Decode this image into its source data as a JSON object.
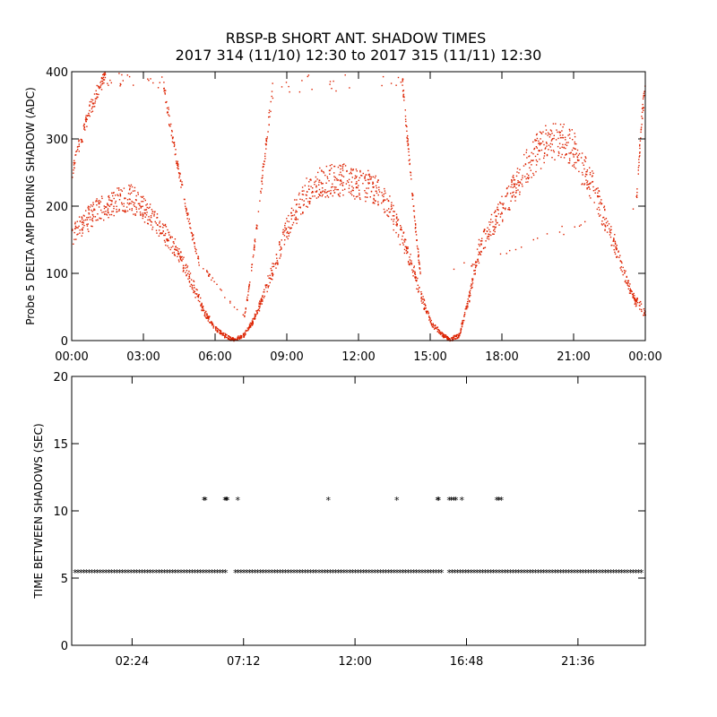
{
  "title": {
    "line1": "RBSP-B SHORT ANT. SHADOW TIMES",
    "line2": "2017 314 (11/10) 12:30 to 2017 315 (11/11) 12:30"
  },
  "chart_data": [
    {
      "type": "scatter",
      "ylabel": "Probe 5 DELTA AMP DURING SHADOW (ADC)",
      "xlabel": "",
      "x_unit": "hours",
      "xlim": [
        0,
        24
      ],
      "ylim": [
        0,
        400
      ],
      "x_ticks": [
        0,
        3,
        6,
        9,
        12,
        15,
        18,
        21,
        24
      ],
      "x_tick_labels": [
        "00:00",
        "03:00",
        "06:00",
        "09:00",
        "12:00",
        "15:00",
        "18:00",
        "21:00",
        "00:00"
      ],
      "y_ticks": [
        0,
        100,
        200,
        300,
        400
      ],
      "y_tick_labels": [
        "0",
        "100",
        "200",
        "300",
        "400"
      ],
      "color": "#dd2200",
      "series": [
        {
          "label_key": "main_band",
          "x": [
            0,
            0.5,
            1,
            1.5,
            2,
            2.5,
            3,
            3.5,
            4,
            4.5,
            5,
            5.5,
            6,
            6.5,
            6.8,
            7.2,
            7.6,
            8,
            8.5,
            9,
            9.5,
            10,
            10.5,
            11,
            11.5,
            12,
            12.5,
            13,
            13.5,
            14,
            14.5,
            15,
            15.5,
            15.8,
            16.2,
            16.6,
            17,
            17.5,
            18,
            18.5,
            19,
            19.5,
            20,
            20.5,
            21,
            21.5,
            22,
            22.5,
            23,
            23.5,
            24
          ],
          "y": [
            175,
            195,
            210,
            222,
            232,
            230,
            215,
            195,
            170,
            140,
            95,
            50,
            20,
            6,
            2,
            10,
            35,
            75,
            130,
            185,
            225,
            250,
            262,
            265,
            262,
            258,
            252,
            235,
            200,
            150,
            85,
            30,
            10,
            2,
            10,
            70,
            150,
            185,
            215,
            250,
            285,
            310,
            325,
            330,
            310,
            275,
            230,
            180,
            120,
            70,
            45
          ]
        },
        {
          "label_key": "outer_arcs",
          "x": [
            0,
            0.3,
            0.6,
            0.9,
            1.2,
            1.4,
            3.8,
            4.1,
            4.4,
            4.7,
            5,
            5.3,
            7.2,
            7.5,
            7.8,
            8.1,
            8.4,
            13.8,
            14,
            14.2,
            14.4,
            14.6,
            23.6,
            23.8,
            24
          ],
          "y": [
            260,
            300,
            340,
            370,
            395,
            405,
            400,
            330,
            270,
            215,
            165,
            120,
            35,
            110,
            200,
            300,
            390,
            405,
            320,
            240,
            160,
            90,
            210,
            330,
            400
          ]
        }
      ]
    },
    {
      "type": "scatter",
      "ylabel": "TIME BETWEEN SHADOWS (SEC)",
      "xlabel": "",
      "x_unit": "hours",
      "xlim": [
        -0.2,
        24.5
      ],
      "ylim": [
        0,
        20
      ],
      "x_ticks": [
        2.4,
        7.2,
        12,
        16.8,
        21.6
      ],
      "x_tick_labels": [
        "02:24",
        "07:12",
        "12:00",
        "16:48",
        "21:36"
      ],
      "y_ticks": [
        0,
        5,
        10,
        15,
        20
      ],
      "y_tick_labels": [
        "0",
        "5",
        "10",
        "15",
        "20"
      ],
      "marker": "*",
      "color": "#000000",
      "baseline": {
        "y": 5.4,
        "x_ranges": [
          [
            -0.05,
            6.45
          ],
          [
            6.85,
            15.75
          ],
          [
            16.05,
            24.4
          ]
        ]
      },
      "outliers": {
        "x": [
          5.5,
          5.55,
          6.4,
          6.45,
          6.5,
          6.95,
          10.85,
          13.8,
          15.55,
          15.6,
          16.05,
          16.15,
          16.25,
          16.35,
          16.6,
          18.1,
          18.2,
          18.3
        ],
        "y": [
          10.8,
          10.8,
          10.8,
          10.8,
          10.8,
          10.8,
          10.8,
          10.8,
          10.8,
          10.8,
          10.8,
          10.8,
          10.8,
          10.8,
          10.8,
          10.8,
          10.8,
          10.8
        ]
      }
    }
  ]
}
